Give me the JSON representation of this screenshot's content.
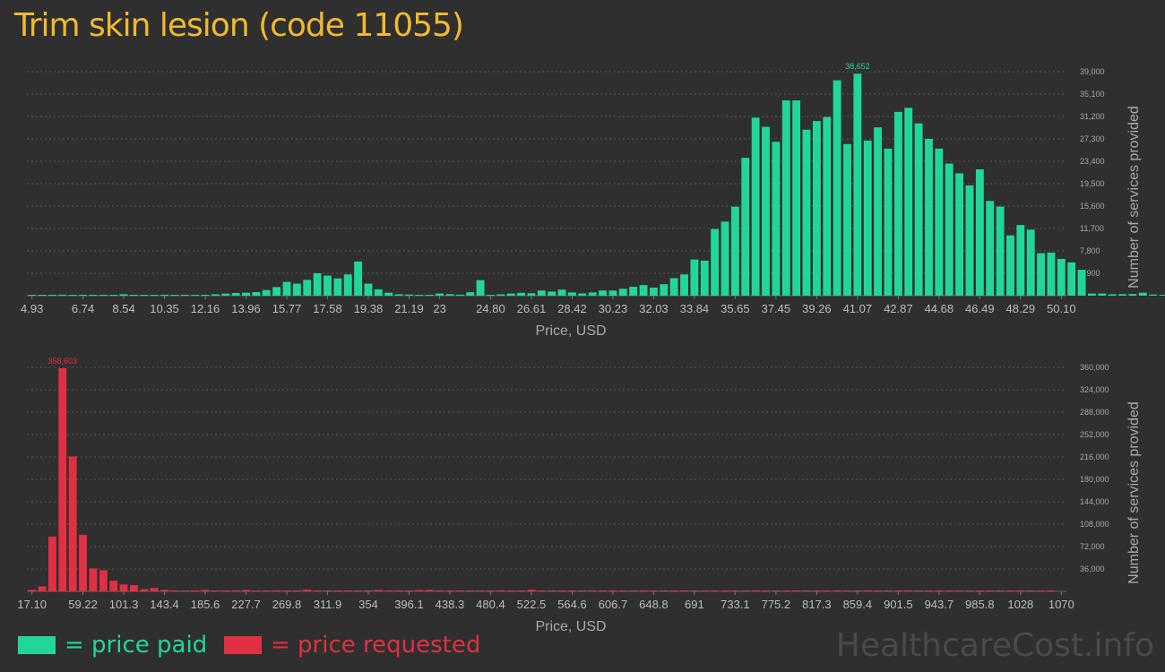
{
  "title": "Trim skin lesion (code 11055)",
  "colors": {
    "paid": "#22d69a",
    "requested": "#e03043",
    "title": "#f0b92e",
    "grid": "#555555"
  },
  "legend": {
    "paid": "= price paid",
    "requested": "= price requested"
  },
  "watermark": "HealthcareCost.info",
  "chart_data": [
    {
      "type": "bar",
      "series": "price paid",
      "color": "#22d69a",
      "xlabel": "Price, USD",
      "ylabel": "Number of services provided",
      "x_tick_labels": [
        "4.93",
        "6.74",
        "8.54",
        "10.35",
        "12.16",
        "13.96",
        "15.77",
        "17.58",
        "19.38",
        "21.19",
        "23",
        "24.80",
        "26.61",
        "28.42",
        "30.23",
        "32.03",
        "33.84",
        "35.65",
        "37.45",
        "39.26",
        "41.07",
        "42.87",
        "44.68",
        "46.49",
        "48.29",
        "50.10"
      ],
      "x_tick_slots": [
        0,
        5,
        9,
        13,
        17,
        21,
        25,
        29,
        33,
        37,
        40,
        45,
        49,
        53,
        57,
        61,
        65,
        69,
        73,
        77,
        81,
        85,
        89,
        93,
        97,
        101
      ],
      "y_ticks": [
        "3,900",
        "7,800",
        "11,700",
        "15,600",
        "19,500",
        "23,400",
        "27,300",
        "31,200",
        "35,100",
        "39,000"
      ],
      "ymax": 39000,
      "peak_label": "38,652",
      "values": [
        120,
        40,
        60,
        180,
        30,
        20,
        50,
        30,
        40,
        260,
        90,
        110,
        70,
        170,
        30,
        60,
        100,
        150,
        250,
        360,
        470,
        520,
        620,
        980,
        1500,
        2400,
        2100,
        2750,
        3900,
        3500,
        3000,
        3700,
        5950,
        2100,
        1100,
        520,
        250,
        200,
        70,
        90,
        380,
        270,
        180,
        600,
        2700,
        150,
        230,
        380,
        500,
        420,
        890,
        720,
        1050,
        570,
        390,
        560,
        900,
        890,
        1200,
        1550,
        1850,
        1400,
        2000,
        3050,
        3700,
        6300,
        6100,
        11600,
        12900,
        15500,
        24000,
        31000,
        29400,
        26800,
        34000,
        34000,
        28900,
        30400,
        31100,
        37500,
        26400,
        38652,
        27000,
        29300,
        25600,
        32000,
        32700,
        30000,
        27300,
        25600,
        23000,
        21300,
        19200,
        22000,
        16500,
        15500,
        10500,
        12300,
        11500,
        7400,
        7500,
        6400,
        5800,
        4500,
        370,
        380,
        250,
        270,
        290,
        520,
        200,
        80,
        50
      ]
    },
    {
      "type": "bar",
      "series": "price requested",
      "color": "#e03043",
      "xlabel": "Price, USD",
      "ylabel": "Number of services provided",
      "x_tick_labels": [
        "17.10",
        "59.22",
        "101.3",
        "143.4",
        "185.6",
        "227.7",
        "269.8",
        "311.9",
        "354",
        "396.1",
        "438.3",
        "480.4",
        "522.5",
        "564.6",
        "606.7",
        "648.8",
        "691",
        "733.1",
        "775.2",
        "817.3",
        "859.4",
        "901.5",
        "943.7",
        "985.8",
        "1028",
        "1070"
      ],
      "x_tick_slots": [
        0,
        5,
        9,
        13,
        17,
        21,
        25,
        29,
        33,
        37,
        41,
        45,
        49,
        53,
        57,
        61,
        65,
        69,
        73,
        77,
        81,
        85,
        89,
        93,
        97,
        101
      ],
      "y_ticks": [
        "36,000",
        "72,000",
        "108,000",
        "144,000",
        "180,000",
        "216,000",
        "252,000",
        "288,000",
        "324,000",
        "360,000"
      ],
      "ymax": 360000,
      "peak_label": "358,603",
      "values": [
        2500,
        8000,
        88000,
        358603,
        217000,
        91000,
        37000,
        34000,
        17000,
        11000,
        10000,
        3500,
        5500,
        2500,
        1500,
        1000,
        1500,
        2300,
        1200,
        800,
        600,
        2300,
        1200,
        1000,
        800,
        600,
        1000,
        2800,
        700,
        600,
        600,
        500,
        500,
        400,
        2300,
        400,
        300,
        200,
        2200,
        2400,
        400,
        300,
        300,
        300,
        200,
        200,
        300,
        400,
        200,
        2800,
        300,
        300,
        200,
        300,
        200,
        200,
        200,
        300,
        200,
        200,
        200,
        200,
        200,
        200,
        300,
        200,
        200,
        200,
        200,
        200,
        200,
        200,
        200,
        200,
        200,
        200,
        200,
        200,
        200,
        200,
        200,
        200,
        200,
        200,
        200,
        200,
        200,
        200,
        200,
        200,
        200,
        200,
        200,
        200,
        200,
        200,
        200,
        200,
        200,
        200,
        1500
      ]
    }
  ]
}
